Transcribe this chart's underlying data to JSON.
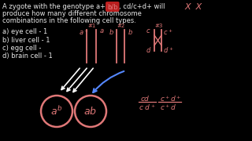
{
  "background_color": "#000000",
  "text_color": "#e8e8e8",
  "pink_color": "#e07878",
  "blue_color": "#5588ff",
  "white_color": "#ffffff",
  "figsize": [
    3.2,
    1.8
  ],
  "dpi": 100,
  "title_text": "A zygote with the genotype a+/a; b/b, cd/c+d+ will",
  "title_line2": "produce how many different chromosome",
  "title_line3": "combinations in the following cell types.",
  "bb_highlight_color": "#cc2222",
  "list_items": [
    "a) eye cell - 1",
    "b) liver cell - 1",
    "c) egg cell -",
    "d) brain cell - 1"
  ]
}
